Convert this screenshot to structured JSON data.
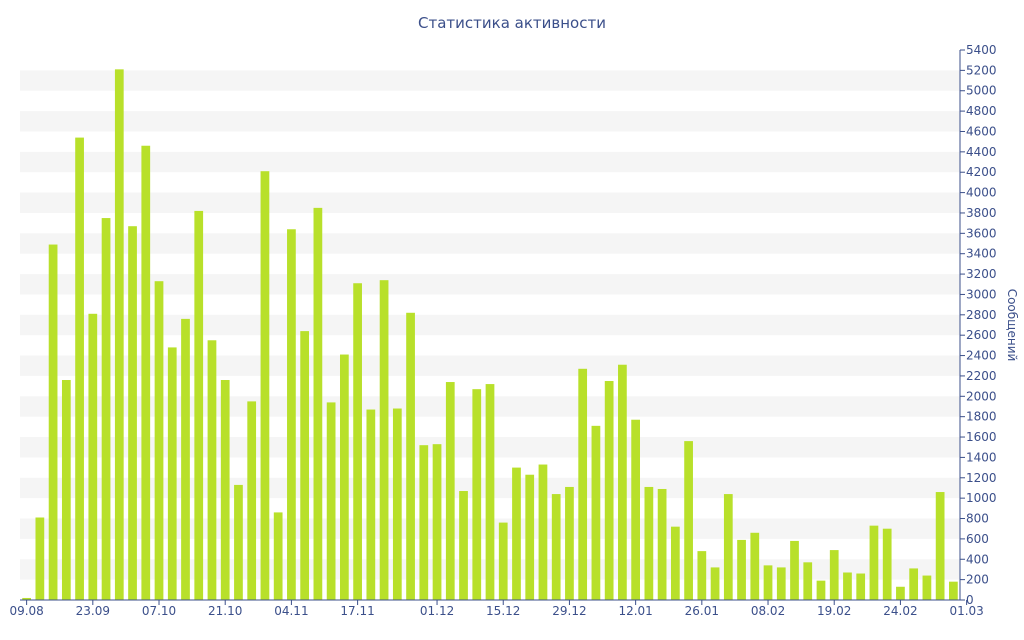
{
  "chart_data": {
    "type": "bar",
    "title": "Статистика активности",
    "ylabel": "Сообщений",
    "xlabel": "",
    "ylim": [
      0,
      5400
    ],
    "y_ticks": [
      0,
      200,
      400,
      600,
      800,
      1000,
      1200,
      1400,
      1600,
      1800,
      2000,
      2200,
      2400,
      2600,
      2800,
      3000,
      3200,
      3400,
      3600,
      3800,
      4000,
      4200,
      4400,
      4600,
      4800,
      5000,
      5200,
      5400
    ],
    "x_tick_labels": [
      "09.08",
      "23.09",
      "07.10",
      "21.10",
      "04.11",
      "17.11",
      "01.12",
      "15.12",
      "29.12",
      "12.01",
      "26.01",
      "08.02",
      "19.02",
      "24.02",
      "01.03"
    ],
    "x_tick_bar_index": [
      0,
      5,
      10,
      15,
      20,
      25,
      31,
      36,
      41,
      46,
      51,
      56,
      61,
      66,
      71
    ],
    "bar_color": "#b8e02a",
    "band_color": "#f5f5f5",
    "axis_color": "#3b4f8a",
    "grid": "horizontal-bands",
    "values": [
      20,
      810,
      3490,
      2160,
      4540,
      2810,
      3750,
      5210,
      3670,
      4460,
      3130,
      2480,
      2760,
      3820,
      2550,
      2160,
      1130,
      1950,
      4210,
      860,
      3640,
      2640,
      3850,
      1940,
      2410,
      3110,
      1870,
      3140,
      1880,
      2820,
      1520,
      1530,
      2140,
      1070,
      2070,
      2120,
      760,
      1300,
      1230,
      1330,
      1040,
      1110,
      2270,
      1710,
      2150,
      2310,
      1770,
      1110,
      1090,
      720,
      1560,
      480,
      320,
      1040,
      590,
      660,
      340,
      320,
      580,
      370,
      190,
      490,
      270,
      260,
      730,
      700,
      130,
      310,
      240,
      1060,
      180
    ]
  }
}
